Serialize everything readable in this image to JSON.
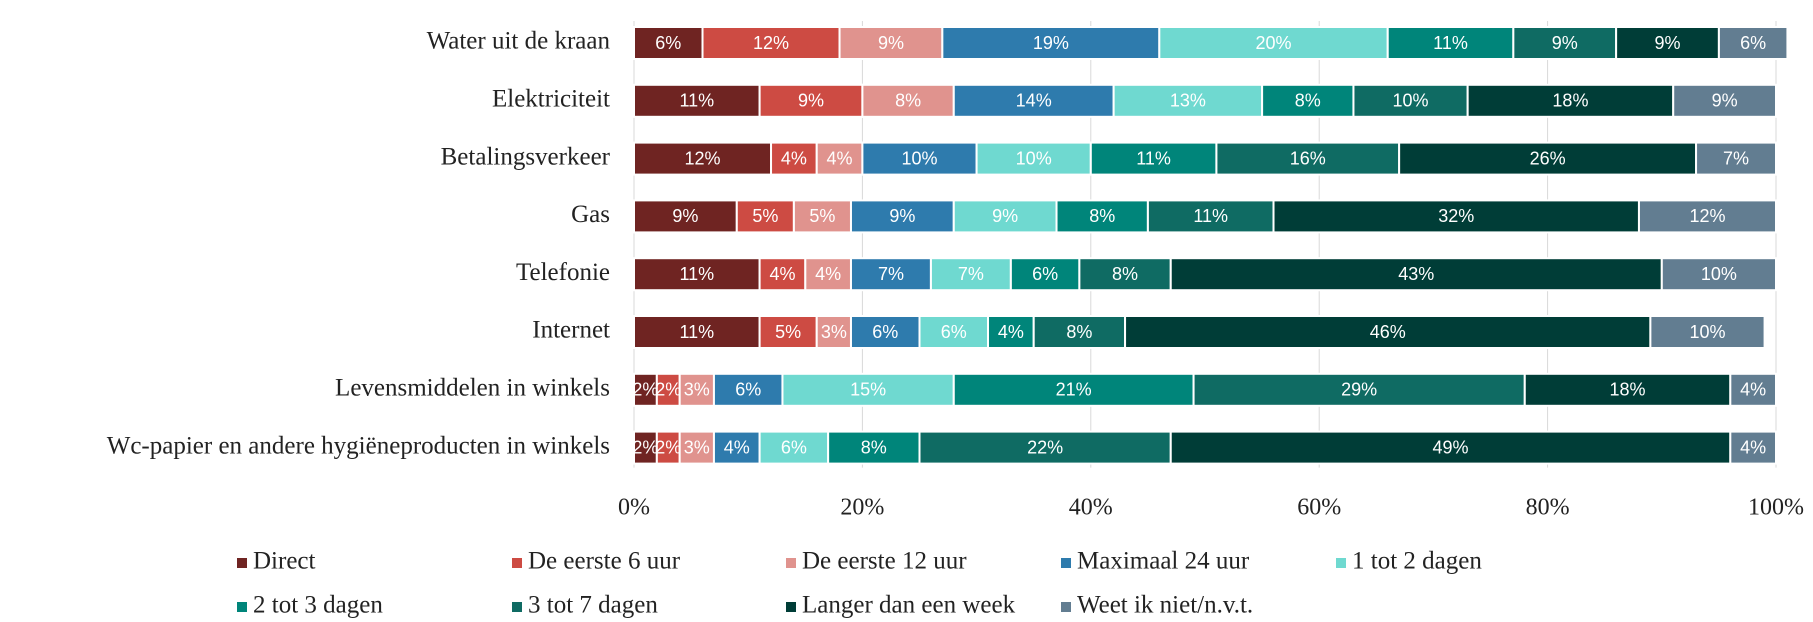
{
  "chart_data": {
    "type": "bar",
    "orientation": "horizontal",
    "stacked": true,
    "grid": true,
    "categories": [
      "Water uit de kraan",
      "Elektriciteit",
      "Betalingsverkeer",
      "Gas",
      "Telefonie",
      "Internet",
      "Levensmiddelen in winkels",
      "Wc-papier en andere hygiëneproducten in winkels"
    ],
    "series": [
      {
        "name": "Direct",
        "color": "#6f2422",
        "values": [
          6,
          11,
          12,
          9,
          11,
          11,
          2,
          2
        ],
        "value_labels": [
          "6%",
          "11%",
          "12%",
          "9%",
          "11%",
          "11%",
          "2%",
          "2%"
        ]
      },
      {
        "name": "De eerste 6 uur",
        "color": "#cd4b43",
        "values": [
          12,
          9,
          4,
          5,
          4,
          5,
          2,
          2
        ],
        "value_labels": [
          "12%",
          "9%",
          "4%",
          "5%",
          "4%",
          "5%",
          "2%",
          "2%"
        ]
      },
      {
        "name": "De eerste 12 uur",
        "color": "#e0938e",
        "values": [
          9,
          8,
          4,
          5,
          4,
          3,
          3,
          3
        ],
        "value_labels": [
          "9%",
          "8%",
          "4%",
          "5%",
          "4%",
          "3%",
          "3%",
          "3%"
        ]
      },
      {
        "name": "Maximaal 24 uur",
        "color": "#2e7bad",
        "values": [
          19,
          14,
          10,
          9,
          7,
          6,
          6,
          4
        ],
        "value_labels": [
          "19%",
          "14%",
          "10%",
          "9%",
          "7%",
          "6%",
          "6%",
          "4%"
        ]
      },
      {
        "name": "1 tot 2 dagen",
        "color": "#6fd9d0",
        "values": [
          20,
          13,
          10,
          9,
          7,
          6,
          15,
          6
        ],
        "value_labels": [
          "20%",
          "13%",
          "10%",
          "9%",
          "7%",
          "6%",
          "15%",
          "6%"
        ]
      },
      {
        "name": "2 tot 3 dagen",
        "color": "#00857a",
        "values": [
          11,
          8,
          11,
          8,
          6,
          4,
          21,
          8
        ],
        "value_labels": [
          "11%",
          "8%",
          "11%",
          "8%",
          "6%",
          "4%",
          "21%",
          "8%"
        ]
      },
      {
        "name": "3 tot 7 dagen",
        "color": "#0f6b63",
        "values": [
          9,
          10,
          16,
          11,
          8,
          8,
          29,
          22
        ],
        "value_labels": [
          "9%",
          "10%",
          "16%",
          "11%",
          "8%",
          "8%",
          "29%",
          "22%"
        ]
      },
      {
        "name": "Langer dan een week",
        "color": "#003d37",
        "values": [
          9,
          18,
          26,
          32,
          43,
          46,
          18,
          49
        ],
        "value_labels": [
          "9%",
          "18%",
          "26%",
          "32%",
          "43%",
          "46%",
          "18%",
          "49%"
        ]
      },
      {
        "name": "Weet ik niet/n.v.t.",
        "color": "#627d91",
        "values": [
          6,
          9,
          7,
          12,
          10,
          10,
          4,
          4
        ],
        "value_labels": [
          "6%",
          "9%",
          "7%",
          "12%",
          "10%",
          "10%",
          "4%",
          "4%"
        ]
      }
    ],
    "xlim": [
      0,
      100
    ],
    "xticks": [
      {
        "value": 0,
        "label": "0%"
      },
      {
        "value": 20,
        "label": "20%"
      },
      {
        "value": 40,
        "label": "40%"
      },
      {
        "value": 60,
        "label": "60%"
      },
      {
        "value": 80,
        "label": "80%"
      },
      {
        "value": 100,
        "label": "100%"
      }
    ]
  }
}
